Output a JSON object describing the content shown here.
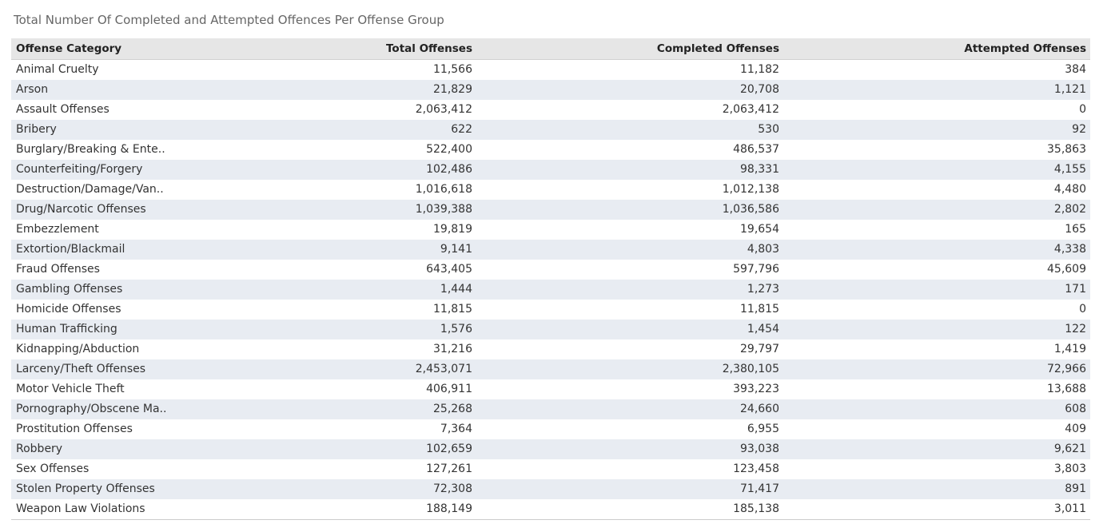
{
  "title": "Total Number Of Completed and Attempted Offences Per Offense Group",
  "chart_data": {
    "type": "table",
    "columns": [
      "Offense Category",
      "Total Offenses",
      "Completed Offenses",
      "Attempted Offenses"
    ],
    "rows": [
      [
        "Animal Cruelty",
        "11,566",
        "11,182",
        "384"
      ],
      [
        "Arson",
        "21,829",
        "20,708",
        "1,121"
      ],
      [
        "Assault Offenses",
        "2,063,412",
        "2,063,412",
        "0"
      ],
      [
        "Bribery",
        "622",
        "530",
        "92"
      ],
      [
        "Burglary/Breaking & Ente..",
        "522,400",
        "486,537",
        "35,863"
      ],
      [
        "Counterfeiting/Forgery",
        "102,486",
        "98,331",
        "4,155"
      ],
      [
        "Destruction/Damage/Van..",
        "1,016,618",
        "1,012,138",
        "4,480"
      ],
      [
        "Drug/Narcotic Offenses",
        "1,039,388",
        "1,036,586",
        "2,802"
      ],
      [
        "Embezzlement",
        "19,819",
        "19,654",
        "165"
      ],
      [
        "Extortion/Blackmail",
        "9,141",
        "4,803",
        "4,338"
      ],
      [
        "Fraud Offenses",
        "643,405",
        "597,796",
        "45,609"
      ],
      [
        "Gambling Offenses",
        "1,444",
        "1,273",
        "171"
      ],
      [
        "Homicide Offenses",
        "11,815",
        "11,815",
        "0"
      ],
      [
        "Human Trafficking",
        "1,576",
        "1,454",
        "122"
      ],
      [
        "Kidnapping/Abduction",
        "31,216",
        "29,797",
        "1,419"
      ],
      [
        "Larceny/Theft Offenses",
        "2,453,071",
        "2,380,105",
        "72,966"
      ],
      [
        "Motor Vehicle Theft",
        "406,911",
        "393,223",
        "13,688"
      ],
      [
        "Pornography/Obscene Ma..",
        "25,268",
        "24,660",
        "608"
      ],
      [
        "Prostitution Offenses",
        "7,364",
        "6,955",
        "409"
      ],
      [
        "Robbery",
        "102,659",
        "93,038",
        "9,621"
      ],
      [
        "Sex Offenses",
        "127,261",
        "123,458",
        "3,803"
      ],
      [
        "Stolen Property Offenses",
        "72,308",
        "71,417",
        "891"
      ],
      [
        "Weapon Law Violations",
        "188,149",
        "185,138",
        "3,011"
      ]
    ]
  },
  "colors": {
    "header_bg": "#e6e6e6",
    "band_bg": "#e8ecf2",
    "text": "#333333",
    "title_text": "#666666"
  }
}
